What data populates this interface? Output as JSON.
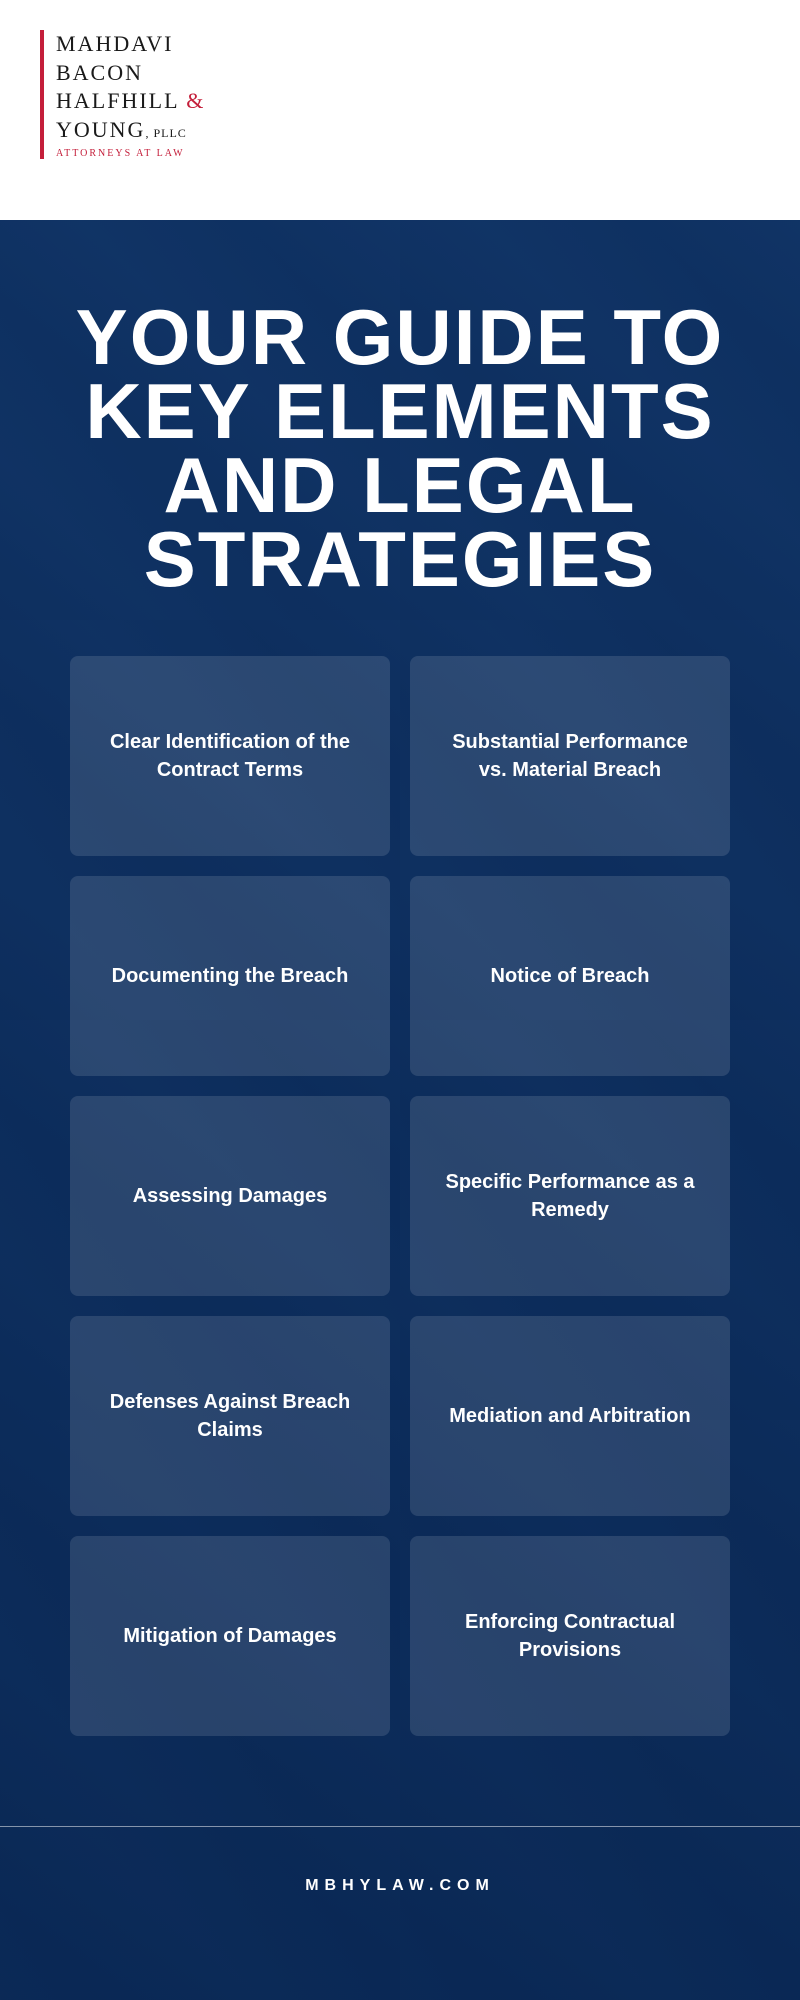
{
  "logo": {
    "line1": "MAHDAVI",
    "line2": "BACON",
    "line3": "HALFHILL",
    "amp": "&",
    "line4": "YOUNG",
    "suffix": ", PLLC",
    "tagline": "ATTORNEYS AT LAW",
    "accent_color": "#c41e3a",
    "text_color": "#1a1a1a"
  },
  "title": "YOUR GUIDE TO KEY ELEMENTS AND LEGAL STRATEGIES",
  "cards": [
    "Clear Identification of the Contract Terms",
    "Substantial Performance vs. Material Breach",
    "Documenting the Breach",
    "Notice of Breach",
    "Assessing Damages",
    "Specific Performance as a Remedy",
    "Defenses Against Breach Claims",
    "Mediation and Arbitration",
    "Mitigation of Damages",
    "Enforcing Contractual Provisions"
  ],
  "footer": "MBHYLAW.COM",
  "styles": {
    "main_bg_overlay": "rgba(15,50,100,0.88)",
    "card_bg": "rgba(255,255,255,0.12)",
    "title_color": "#ffffff",
    "title_fontsize": 78,
    "card_fontsize": 20,
    "footer_fontsize": 16
  }
}
